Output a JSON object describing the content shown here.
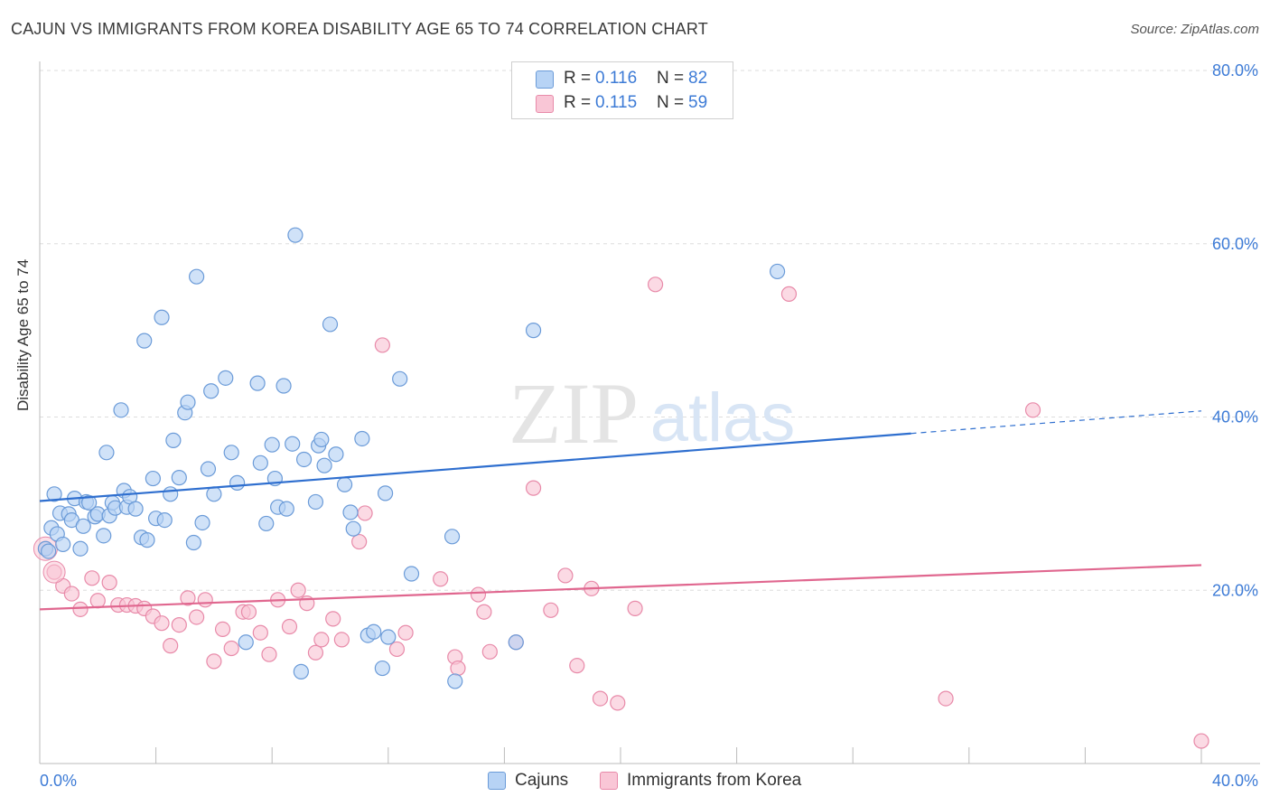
{
  "header": {
    "title": "CAJUN VS IMMIGRANTS FROM KOREA DISABILITY AGE 65 TO 74 CORRELATION CHART",
    "source": "Source: ZipAtlas.com"
  },
  "watermark": {
    "zip": "ZIP",
    "atlas": "atlas"
  },
  "legend": {
    "rows": [
      {
        "r_label": "R =",
        "r_value": "0.116",
        "n_label": "N =",
        "n_value": "82"
      },
      {
        "r_label": "R =",
        "r_value": "0.115",
        "n_label": "N =",
        "n_value": "59"
      }
    ]
  },
  "bottom_legend": {
    "cajuns": "Cajuns",
    "korea": "Immigrants from Korea"
  },
  "colors": {
    "cajun_fill": "#b7d3f5",
    "cajun_stroke": "#6b9bd8",
    "cajun_line": "#2f6fcf",
    "korea_fill": "#f9c6d6",
    "korea_stroke": "#e88aa9",
    "korea_line": "#e0678f",
    "axis_text": "#3d7bd6",
    "grid": "#dddddd"
  },
  "chart_data": {
    "type": "scatter",
    "title": "CAJUN VS IMMIGRANTS FROM KOREA DISABILITY AGE 65 TO 74 CORRELATION CHART",
    "xlabel": "",
    "ylabel": "Disability Age 65 to 74",
    "xlim": [
      0,
      40
    ],
    "ylim": [
      0,
      80
    ],
    "x_tick_labels": [
      "0.0%",
      "40.0%"
    ],
    "y_tick_values": [
      20,
      40,
      60,
      80
    ],
    "y_tick_labels": [
      "20.0%",
      "40.0%",
      "60.0%",
      "80.0%"
    ],
    "grid": true,
    "series": [
      {
        "name": "Cajuns",
        "points": [
          [
            0.2,
            24.8
          ],
          [
            0.3,
            24.5
          ],
          [
            0.4,
            27.2
          ],
          [
            0.5,
            31.1
          ],
          [
            0.6,
            26.5
          ],
          [
            0.7,
            28.9
          ],
          [
            0.8,
            25.3
          ],
          [
            1.0,
            28.8
          ],
          [
            1.1,
            28.1
          ],
          [
            1.2,
            30.6
          ],
          [
            1.4,
            24.8
          ],
          [
            1.5,
            27.4
          ],
          [
            1.6,
            30.2
          ],
          [
            1.7,
            30.1
          ],
          [
            1.9,
            28.5
          ],
          [
            2.0,
            28.8
          ],
          [
            2.2,
            26.3
          ],
          [
            2.3,
            35.9
          ],
          [
            2.4,
            28.6
          ],
          [
            2.5,
            30.1
          ],
          [
            2.6,
            29.5
          ],
          [
            2.8,
            40.8
          ],
          [
            2.9,
            31.5
          ],
          [
            3.0,
            29.6
          ],
          [
            3.1,
            30.8
          ],
          [
            3.3,
            29.4
          ],
          [
            3.5,
            26.1
          ],
          [
            3.6,
            48.8
          ],
          [
            3.7,
            25.8
          ],
          [
            3.9,
            32.9
          ],
          [
            4.0,
            28.3
          ],
          [
            4.2,
            51.5
          ],
          [
            4.3,
            28.1
          ],
          [
            4.5,
            31.1
          ],
          [
            4.6,
            37.3
          ],
          [
            4.8,
            33.0
          ],
          [
            5.0,
            40.5
          ],
          [
            5.1,
            41.7
          ],
          [
            5.3,
            25.5
          ],
          [
            5.4,
            56.2
          ],
          [
            5.6,
            27.8
          ],
          [
            5.8,
            34.0
          ],
          [
            5.9,
            43.0
          ],
          [
            6.0,
            31.1
          ],
          [
            6.4,
            44.5
          ],
          [
            6.6,
            35.9
          ],
          [
            6.8,
            32.4
          ],
          [
            7.1,
            14.0
          ],
          [
            7.5,
            43.9
          ],
          [
            7.6,
            34.7
          ],
          [
            7.8,
            27.7
          ],
          [
            8.0,
            36.8
          ],
          [
            8.1,
            32.9
          ],
          [
            8.2,
            29.6
          ],
          [
            8.4,
            43.6
          ],
          [
            8.5,
            29.4
          ],
          [
            8.7,
            36.9
          ],
          [
            8.8,
            61.0
          ],
          [
            9.0,
            10.6
          ],
          [
            9.1,
            35.1
          ],
          [
            9.5,
            30.2
          ],
          [
            9.6,
            36.7
          ],
          [
            9.7,
            37.4
          ],
          [
            9.8,
            34.4
          ],
          [
            10.0,
            50.7
          ],
          [
            10.2,
            35.7
          ],
          [
            10.5,
            32.2
          ],
          [
            10.7,
            29.0
          ],
          [
            10.8,
            27.1
          ],
          [
            11.1,
            37.5
          ],
          [
            11.3,
            14.8
          ],
          [
            11.5,
            15.2
          ],
          [
            11.8,
            11.0
          ],
          [
            11.9,
            31.2
          ],
          [
            12.4,
            44.4
          ],
          [
            12.8,
            21.9
          ],
          [
            14.2,
            26.2
          ],
          [
            14.3,
            9.5
          ],
          [
            16.4,
            14.0
          ],
          [
            17.0,
            50.0
          ],
          [
            25.4,
            56.8
          ],
          [
            12.0,
            14.6
          ]
        ]
      },
      {
        "name": "Immigrants from Korea",
        "points": [
          [
            0.2,
            24.8
          ],
          [
            0.5,
            22.1
          ],
          [
            0.8,
            20.5
          ],
          [
            1.1,
            19.6
          ],
          [
            1.4,
            17.8
          ],
          [
            1.8,
            21.4
          ],
          [
            2.0,
            18.8
          ],
          [
            2.4,
            20.9
          ],
          [
            2.7,
            18.3
          ],
          [
            3.0,
            18.3
          ],
          [
            3.3,
            18.2
          ],
          [
            3.6,
            17.9
          ],
          [
            3.9,
            17.0
          ],
          [
            4.2,
            16.2
          ],
          [
            4.5,
            13.6
          ],
          [
            4.8,
            16.0
          ],
          [
            5.1,
            19.1
          ],
          [
            5.4,
            16.9
          ],
          [
            5.7,
            18.9
          ],
          [
            6.0,
            11.8
          ],
          [
            6.3,
            15.5
          ],
          [
            6.6,
            13.3
          ],
          [
            7.0,
            17.5
          ],
          [
            7.2,
            17.5
          ],
          [
            7.6,
            15.1
          ],
          [
            7.9,
            12.6
          ],
          [
            8.2,
            18.9
          ],
          [
            8.6,
            15.8
          ],
          [
            8.9,
            20.0
          ],
          [
            9.2,
            18.5
          ],
          [
            9.5,
            12.8
          ],
          [
            9.7,
            14.3
          ],
          [
            10.1,
            16.7
          ],
          [
            10.4,
            14.3
          ],
          [
            11.0,
            25.6
          ],
          [
            11.2,
            28.9
          ],
          [
            11.8,
            48.3
          ],
          [
            12.3,
            13.2
          ],
          [
            12.6,
            15.1
          ],
          [
            13.8,
            21.3
          ],
          [
            14.3,
            12.3
          ],
          [
            15.1,
            19.5
          ],
          [
            15.3,
            17.5
          ],
          [
            15.5,
            12.9
          ],
          [
            16.4,
            14.0
          ],
          [
            17.0,
            31.8
          ],
          [
            17.6,
            17.7
          ],
          [
            18.1,
            21.7
          ],
          [
            18.5,
            11.3
          ],
          [
            19.0,
            20.2
          ],
          [
            19.3,
            7.5
          ],
          [
            19.9,
            7.0
          ],
          [
            20.5,
            17.9
          ],
          [
            21.2,
            55.3
          ],
          [
            25.8,
            54.2
          ],
          [
            31.2,
            7.5
          ],
          [
            34.2,
            40.8
          ],
          [
            40.0,
            2.6
          ],
          [
            14.4,
            11.0
          ]
        ]
      }
    ],
    "trendlines": [
      {
        "series": "Cajuns",
        "solid": [
          [
            0,
            30.3
          ],
          [
            30,
            38.1
          ]
        ],
        "dashed": [
          [
            30,
            38.1
          ],
          [
            40,
            40.7
          ]
        ]
      },
      {
        "series": "Immigrants from Korea",
        "solid": [
          [
            0,
            17.8
          ],
          [
            40,
            22.9
          ]
        ]
      }
    ]
  }
}
